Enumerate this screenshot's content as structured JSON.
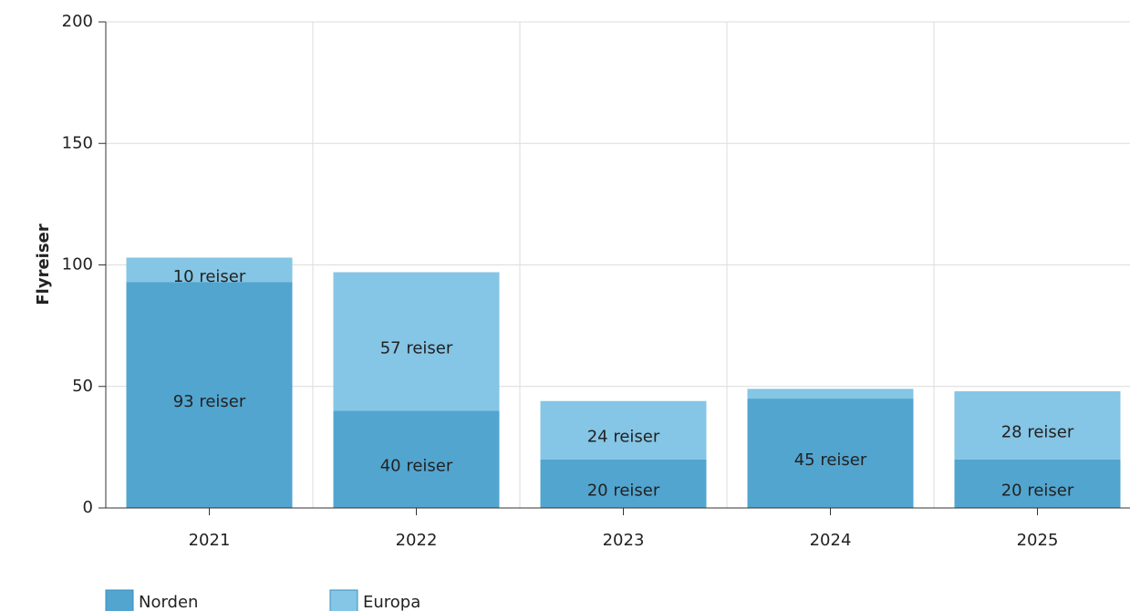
{
  "chart_data": {
    "type": "stacked_bar",
    "y_axis_label": "Flyreiser",
    "categories": [
      "2021",
      "2022",
      "2023",
      "2024",
      "2025"
    ],
    "series": [
      {
        "name": "Norden",
        "color": "#52a5cf",
        "values": [
          93,
          40,
          20,
          45,
          20
        ],
        "value_labels": [
          "93 reiser",
          "40 reiser",
          "20 reiser",
          "45 reiser",
          "20 reiser"
        ]
      },
      {
        "name": "Europa",
        "color": "#85c5e5",
        "values": [
          10,
          57,
          24,
          4,
          28
        ],
        "value_labels": [
          "10 reiser",
          "57 reiser",
          "24 reiser",
          null,
          "28 reiser"
        ]
      }
    ],
    "ylim": [
      0,
      200
    ],
    "yticks": [
      0,
      50,
      100,
      150,
      200
    ],
    "grid": true,
    "legend": "bottom-left"
  }
}
